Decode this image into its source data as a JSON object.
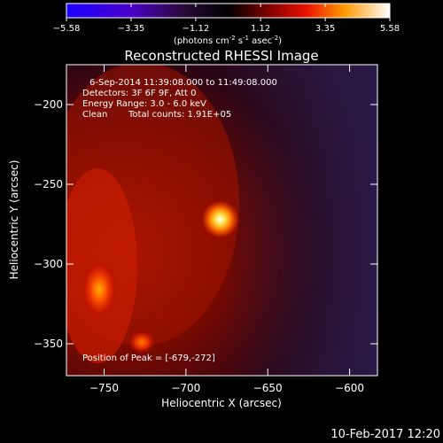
{
  "chart_data": {
    "type": "heatmap",
    "title": "Reconstructed RHESSI Image",
    "xlabel": "Heliocentric X (arcsec)",
    "ylabel": "Heliocentric Y (arcsec)",
    "xlim": [
      -773,
      -583
    ],
    "ylim": [
      -370,
      -175
    ],
    "x_ticks": [
      -750,
      -700,
      -650,
      -600
    ],
    "y_ticks": [
      -200,
      -250,
      -300,
      -350
    ],
    "colorbar": {
      "range": [
        -5.58,
        5.58
      ],
      "ticks": [
        -5.58,
        -3.35,
        -1.12,
        1.12,
        3.35,
        5.58
      ],
      "units_label": "(photons cm",
      "units_sup1": "-2",
      "units_mid": " s",
      "units_sup2": "-1",
      "units_end": " asec",
      "units_sup3": "-2",
      "units_close": ")"
    },
    "annotations": {
      "time": "6-Sep-2014 11:39:08.000 to 11:49:08.000",
      "detectors": "Detectors: 3F 6F 9F, Att 0",
      "energy": "Energy Range: 3.0 - 6.0 keV",
      "clean": "Clean",
      "counts": "Total counts: 1.91E+05",
      "peak": "Position of Peak = [-679,-272]"
    },
    "sources": [
      {
        "x": -679,
        "y": -272,
        "intensity": 5.58
      },
      {
        "x": -753,
        "y": -316,
        "intensity": 4.3
      },
      {
        "x": -727,
        "y": -349,
        "intensity": 3.0
      }
    ],
    "peak": {
      "x": -679,
      "y": -272
    }
  },
  "timestamp": "10-Feb-2017 12:20"
}
